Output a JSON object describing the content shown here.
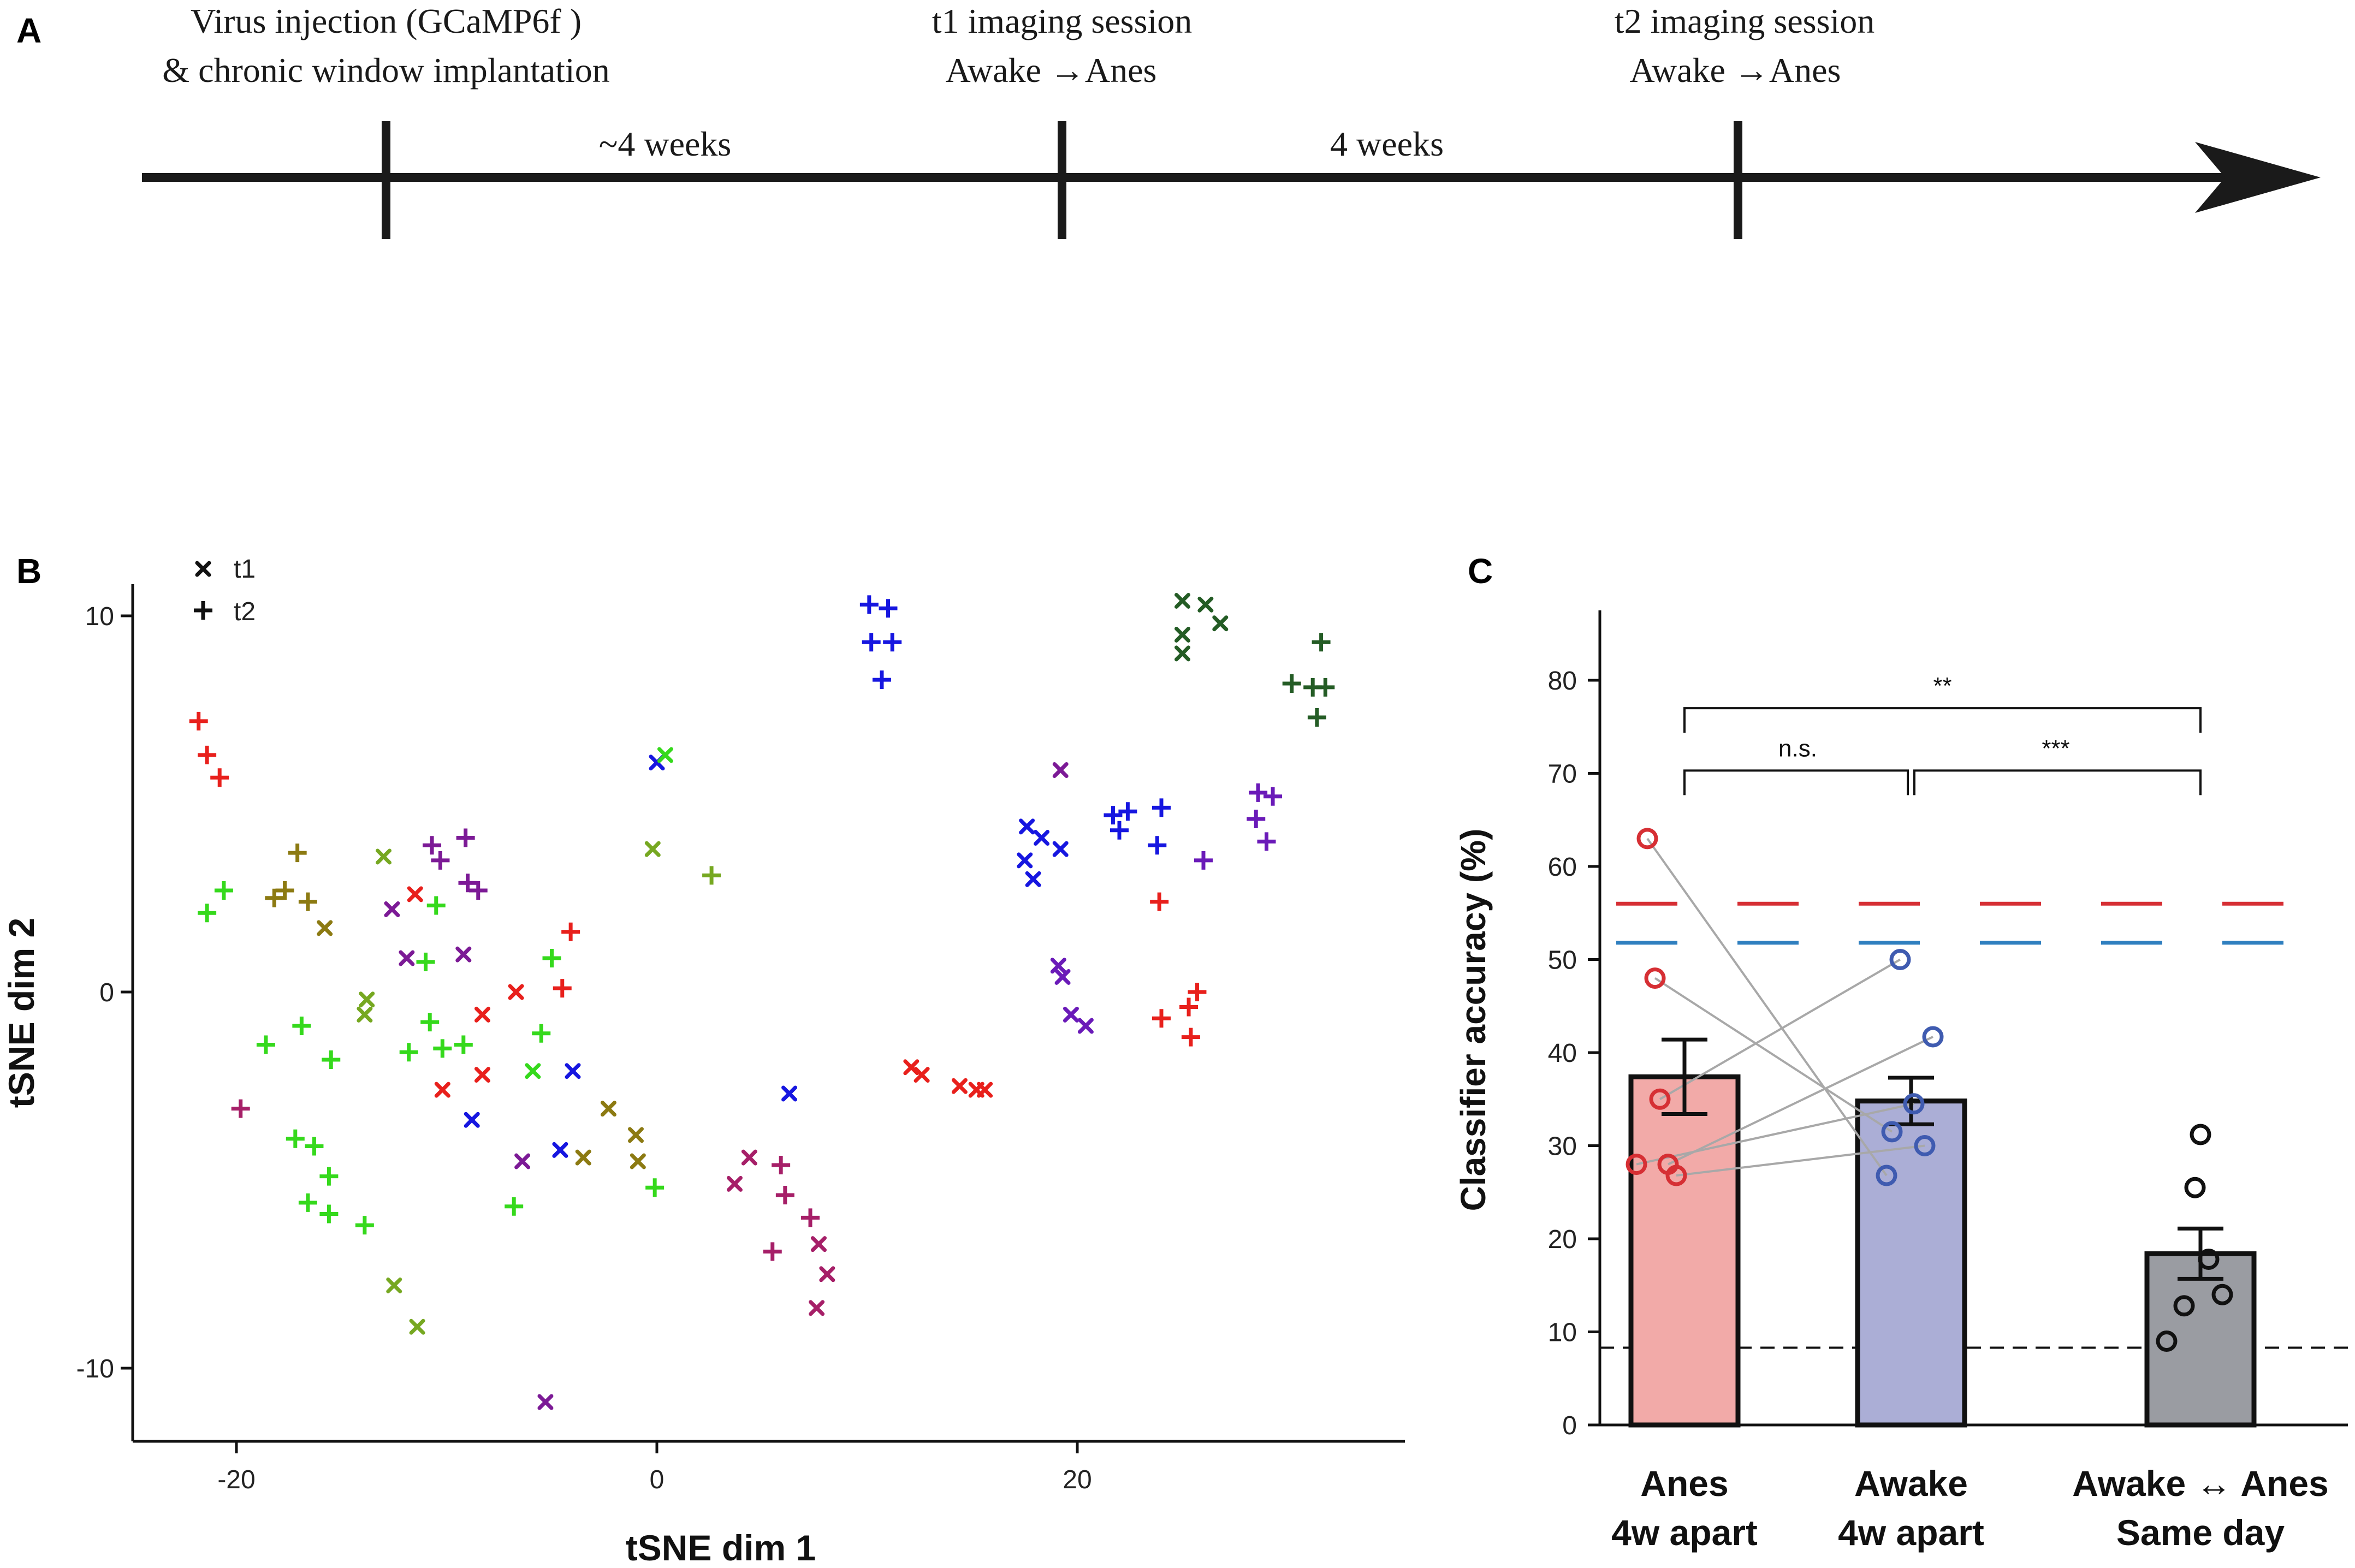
{
  "panels": {
    "a": "A",
    "b": "B",
    "c": "C"
  },
  "timeline": {
    "events": [
      {
        "line1": "Virus injection (GCaMP6f )",
        "line2": "& chronic window implantation"
      },
      {
        "line1": "t1 imaging session",
        "line2": "Awake →Anes"
      },
      {
        "line1": "t2 imaging session",
        "line2": "Awake →Anes"
      }
    ],
    "intervals": [
      "~4 weeks",
      "4 weeks"
    ]
  },
  "chart_data": [
    {
      "type": "scatter",
      "panel": "B",
      "xlabel": "tSNE dim 1",
      "ylabel": "tSNE dim 2",
      "xlim": [
        -25,
        34
      ],
      "ylim": [
        -12,
        11
      ],
      "xticks": [
        "-20",
        "0",
        "20"
      ],
      "xtick_values": [
        -20,
        0,
        20
      ],
      "yticks": [
        "10",
        "0",
        "-10"
      ],
      "ytick_values": [
        10,
        0,
        -10
      ],
      "legend": [
        {
          "marker": "x",
          "label": "t1"
        },
        {
          "marker": "+",
          "label": "t2"
        }
      ],
      "colors": {
        "red": "#e8201c",
        "lime": "#35d91c",
        "olive": "#76a821",
        "mustard": "#8c7a12",
        "magenta": "#a61f68",
        "purple": "#7c1a96",
        "blue": "#1616e0",
        "violet": "#6a1ab8",
        "darkgreen": "#245c25"
      },
      "points": [
        {
          "x": -21.8,
          "y": 7.2,
          "m": "+",
          "c": "red"
        },
        {
          "x": -21.4,
          "y": 6.3,
          "m": "+",
          "c": "red"
        },
        {
          "x": -20.8,
          "y": 5.7,
          "m": "+",
          "c": "red"
        },
        {
          "x": -21.4,
          "y": 2.1,
          "m": "+",
          "c": "lime"
        },
        {
          "x": -20.6,
          "y": 2.7,
          "m": "+",
          "c": "lime"
        },
        {
          "x": -18.2,
          "y": 2.5,
          "m": "+",
          "c": "mustard"
        },
        {
          "x": -17.7,
          "y": 2.7,
          "m": "+",
          "c": "mustard"
        },
        {
          "x": -17.1,
          "y": 3.7,
          "m": "+",
          "c": "mustard"
        },
        {
          "x": -16.6,
          "y": 2.4,
          "m": "+",
          "c": "mustard"
        },
        {
          "x": -15.8,
          "y": 1.7,
          "m": "x",
          "c": "mustard"
        },
        {
          "x": -13.0,
          "y": 3.6,
          "m": "x",
          "c": "olive"
        },
        {
          "x": -12.6,
          "y": 2.2,
          "m": "x",
          "c": "purple"
        },
        {
          "x": -11.5,
          "y": 2.6,
          "m": "x",
          "c": "red"
        },
        {
          "x": -10.7,
          "y": 3.9,
          "m": "+",
          "c": "purple"
        },
        {
          "x": -10.3,
          "y": 3.5,
          "m": "+",
          "c": "purple"
        },
        {
          "x": -10.5,
          "y": 2.3,
          "m": "+",
          "c": "lime"
        },
        {
          "x": -9.1,
          "y": 4.1,
          "m": "+",
          "c": "purple"
        },
        {
          "x": -9.0,
          "y": 2.9,
          "m": "+",
          "c": "purple"
        },
        {
          "x": -8.5,
          "y": 2.7,
          "m": "+",
          "c": "purple"
        },
        {
          "x": -11.9,
          "y": 0.9,
          "m": "x",
          "c": "purple"
        },
        {
          "x": -11.0,
          "y": 0.8,
          "m": "+",
          "c": "lime"
        },
        {
          "x": -9.2,
          "y": 1.0,
          "m": "x",
          "c": "purple"
        },
        {
          "x": -13.8,
          "y": -0.2,
          "m": "x",
          "c": "olive"
        },
        {
          "x": -13.9,
          "y": -0.6,
          "m": "x",
          "c": "olive"
        },
        {
          "x": -10.8,
          "y": -0.8,
          "m": "+",
          "c": "lime"
        },
        {
          "x": -8.3,
          "y": -0.6,
          "m": "x",
          "c": "red"
        },
        {
          "x": -6.7,
          "y": 0.0,
          "m": "x",
          "c": "red"
        },
        {
          "x": -4.5,
          "y": 0.1,
          "m": "+",
          "c": "red"
        },
        {
          "x": -4.1,
          "y": 1.6,
          "m": "+",
          "c": "red"
        },
        {
          "x": -5.0,
          "y": 0.9,
          "m": "+",
          "c": "lime"
        },
        {
          "x": -18.6,
          "y": -1.4,
          "m": "+",
          "c": "lime"
        },
        {
          "x": -16.9,
          "y": -0.9,
          "m": "+",
          "c": "lime"
        },
        {
          "x": -15.5,
          "y": -1.8,
          "m": "+",
          "c": "lime"
        },
        {
          "x": -11.8,
          "y": -1.6,
          "m": "+",
          "c": "lime"
        },
        {
          "x": -10.2,
          "y": -1.5,
          "m": "+",
          "c": "lime"
        },
        {
          "x": -9.2,
          "y": -1.4,
          "m": "+",
          "c": "lime"
        },
        {
          "x": -10.2,
          "y": -2.6,
          "m": "x",
          "c": "red"
        },
        {
          "x": -8.3,
          "y": -2.2,
          "m": "x",
          "c": "red"
        },
        {
          "x": -5.5,
          "y": -1.1,
          "m": "+",
          "c": "lime"
        },
        {
          "x": -5.9,
          "y": -2.1,
          "m": "x",
          "c": "lime"
        },
        {
          "x": -4.0,
          "y": -2.1,
          "m": "x",
          "c": "blue"
        },
        {
          "x": -8.8,
          "y": -3.4,
          "m": "x",
          "c": "blue"
        },
        {
          "x": -19.8,
          "y": -3.1,
          "m": "+",
          "c": "magenta"
        },
        {
          "x": -17.2,
          "y": -3.9,
          "m": "+",
          "c": "lime"
        },
        {
          "x": -16.3,
          "y": -4.1,
          "m": "+",
          "c": "lime"
        },
        {
          "x": -15.6,
          "y": -4.9,
          "m": "+",
          "c": "lime"
        },
        {
          "x": -16.6,
          "y": -5.6,
          "m": "+",
          "c": "lime"
        },
        {
          "x": -15.6,
          "y": -5.9,
          "m": "+",
          "c": "lime"
        },
        {
          "x": -13.9,
          "y": -6.2,
          "m": "+",
          "c": "lime"
        },
        {
          "x": -12.5,
          "y": -7.8,
          "m": "x",
          "c": "olive"
        },
        {
          "x": -11.4,
          "y": -8.9,
          "m": "x",
          "c": "olive"
        },
        {
          "x": -6.8,
          "y": -5.7,
          "m": "+",
          "c": "lime"
        },
        {
          "x": -6.4,
          "y": -4.5,
          "m": "x",
          "c": "purple"
        },
        {
          "x": -4.6,
          "y": -4.2,
          "m": "x",
          "c": "blue"
        },
        {
          "x": -3.5,
          "y": -4.4,
          "m": "x",
          "c": "mustard"
        },
        {
          "x": -2.3,
          "y": -3.1,
          "m": "x",
          "c": "mustard"
        },
        {
          "x": -1.0,
          "y": -3.8,
          "m": "x",
          "c": "mustard"
        },
        {
          "x": -0.9,
          "y": -4.5,
          "m": "x",
          "c": "mustard"
        },
        {
          "x": -0.1,
          "y": -5.2,
          "m": "+",
          "c": "lime"
        },
        {
          "x": 0.0,
          "y": 6.1,
          "m": "x",
          "c": "blue"
        },
        {
          "x": 0.4,
          "y": 6.3,
          "m": "x",
          "c": "lime"
        },
        {
          "x": -0.2,
          "y": 3.8,
          "m": "x",
          "c": "olive"
        },
        {
          "x": 2.6,
          "y": 3.1,
          "m": "+",
          "c": "olive"
        },
        {
          "x": -5.3,
          "y": -10.9,
          "m": "x",
          "c": "purple"
        },
        {
          "x": 4.4,
          "y": -4.4,
          "m": "x",
          "c": "magenta"
        },
        {
          "x": 3.7,
          "y": -5.1,
          "m": "x",
          "c": "magenta"
        },
        {
          "x": 5.9,
          "y": -4.6,
          "m": "+",
          "c": "magenta"
        },
        {
          "x": 6.3,
          "y": -2.7,
          "m": "x",
          "c": "blue"
        },
        {
          "x": 6.1,
          "y": -5.4,
          "m": "+",
          "c": "magenta"
        },
        {
          "x": 7.3,
          "y": -6.0,
          "m": "+",
          "c": "magenta"
        },
        {
          "x": 7.7,
          "y": -6.7,
          "m": "x",
          "c": "magenta"
        },
        {
          "x": 5.5,
          "y": -6.9,
          "m": "+",
          "c": "magenta"
        },
        {
          "x": 8.1,
          "y": -7.5,
          "m": "x",
          "c": "magenta"
        },
        {
          "x": 7.6,
          "y": -8.4,
          "m": "x",
          "c": "magenta"
        },
        {
          "x": 12.1,
          "y": -2.0,
          "m": "x",
          "c": "red"
        },
        {
          "x": 12.6,
          "y": -2.2,
          "m": "x",
          "c": "red"
        },
        {
          "x": 14.4,
          "y": -2.5,
          "m": "x",
          "c": "red"
        },
        {
          "x": 15.2,
          "y": -2.6,
          "m": "x",
          "c": "red"
        },
        {
          "x": 15.6,
          "y": -2.6,
          "m": "x",
          "c": "red"
        },
        {
          "x": 10.1,
          "y": 10.3,
          "m": "+",
          "c": "blue"
        },
        {
          "x": 11.0,
          "y": 10.2,
          "m": "+",
          "c": "blue"
        },
        {
          "x": 10.2,
          "y": 9.3,
          "m": "+",
          "c": "blue"
        },
        {
          "x": 11.2,
          "y": 9.3,
          "m": "+",
          "c": "blue"
        },
        {
          "x": 10.7,
          "y": 8.3,
          "m": "+",
          "c": "blue"
        },
        {
          "x": 19.2,
          "y": 5.9,
          "m": "x",
          "c": "purple"
        },
        {
          "x": 17.6,
          "y": 4.4,
          "m": "x",
          "c": "blue"
        },
        {
          "x": 18.3,
          "y": 4.1,
          "m": "x",
          "c": "blue"
        },
        {
          "x": 19.2,
          "y": 3.8,
          "m": "x",
          "c": "blue"
        },
        {
          "x": 17.5,
          "y": 3.5,
          "m": "x",
          "c": "blue"
        },
        {
          "x": 17.9,
          "y": 3.0,
          "m": "x",
          "c": "blue"
        },
        {
          "x": 21.7,
          "y": 4.7,
          "m": "+",
          "c": "blue"
        },
        {
          "x": 22.4,
          "y": 4.8,
          "m": "+",
          "c": "blue"
        },
        {
          "x": 22.0,
          "y": 4.3,
          "m": "+",
          "c": "blue"
        },
        {
          "x": 24.0,
          "y": 4.9,
          "m": "+",
          "c": "blue"
        },
        {
          "x": 23.8,
          "y": 3.9,
          "m": "+",
          "c": "blue"
        },
        {
          "x": 19.1,
          "y": 0.7,
          "m": "x",
          "c": "violet"
        },
        {
          "x": 19.3,
          "y": 0.4,
          "m": "x",
          "c": "violet"
        },
        {
          "x": 19.7,
          "y": -0.6,
          "m": "x",
          "c": "violet"
        },
        {
          "x": 20.4,
          "y": -0.9,
          "m": "x",
          "c": "violet"
        },
        {
          "x": 23.9,
          "y": 2.4,
          "m": "+",
          "c": "red"
        },
        {
          "x": 25.7,
          "y": 0.0,
          "m": "+",
          "c": "red"
        },
        {
          "x": 25.3,
          "y": -0.4,
          "m": "+",
          "c": "red"
        },
        {
          "x": 24.0,
          "y": -0.7,
          "m": "+",
          "c": "red"
        },
        {
          "x": 25.4,
          "y": -1.2,
          "m": "+",
          "c": "red"
        },
        {
          "x": 26.0,
          "y": 3.5,
          "m": "+",
          "c": "violet"
        },
        {
          "x": 28.6,
          "y": 5.3,
          "m": "+",
          "c": "violet"
        },
        {
          "x": 29.3,
          "y": 5.2,
          "m": "+",
          "c": "violet"
        },
        {
          "x": 28.5,
          "y": 4.6,
          "m": "+",
          "c": "violet"
        },
        {
          "x": 29.0,
          "y": 4.0,
          "m": "+",
          "c": "violet"
        },
        {
          "x": 25.0,
          "y": 10.4,
          "m": "x",
          "c": "darkgreen"
        },
        {
          "x": 26.1,
          "y": 10.3,
          "m": "x",
          "c": "darkgreen"
        },
        {
          "x": 26.8,
          "y": 9.8,
          "m": "x",
          "c": "darkgreen"
        },
        {
          "x": 25.0,
          "y": 9.5,
          "m": "x",
          "c": "darkgreen"
        },
        {
          "x": 25.0,
          "y": 9.0,
          "m": "x",
          "c": "darkgreen"
        },
        {
          "x": 30.2,
          "y": 8.2,
          "m": "+",
          "c": "darkgreen"
        },
        {
          "x": 31.6,
          "y": 9.3,
          "m": "+",
          "c": "darkgreen"
        },
        {
          "x": 31.2,
          "y": 8.1,
          "m": "+",
          "c": "darkgreen"
        },
        {
          "x": 31.8,
          "y": 8.1,
          "m": "+",
          "c": "darkgreen"
        },
        {
          "x": 31.4,
          "y": 7.3,
          "m": "+",
          "c": "darkgreen"
        }
      ]
    },
    {
      "type": "bar",
      "panel": "C",
      "ylabel": "Classifier accuracy (%)",
      "ylim": [
        0,
        85
      ],
      "yticks": [
        "0",
        "10",
        "20",
        "30",
        "40",
        "50",
        "60",
        "70",
        "80"
      ],
      "ytick_values": [
        0,
        10,
        20,
        30,
        40,
        50,
        60,
        70,
        80
      ],
      "categories": [
        {
          "line1": "Anes",
          "line2": "4w apart"
        },
        {
          "line1": "Awake",
          "line2": "4w apart"
        },
        {
          "line1": "Awake ↔ Anes",
          "line2": "Same day"
        }
      ],
      "bar_positions": [
        0,
        1,
        2.5
      ],
      "values": [
        37.4,
        34.8,
        18.4
      ],
      "errors": [
        4.0,
        2.5,
        2.7
      ],
      "bar_colors": [
        "#f2aaa8",
        "#abaed6",
        "#9a9ca2"
      ],
      "point_colors": [
        "#d62f34",
        "#3f5bb0",
        "#111111"
      ],
      "points": [
        [
          63.0,
          48.0,
          35.0,
          28.0,
          28.0,
          26.8
        ],
        [
          50.0,
          41.7,
          34.5,
          31.5,
          30.0,
          26.8
        ],
        [
          31.2,
          25.5,
          17.8,
          14.0,
          12.8,
          9.0
        ]
      ],
      "pairs": [
        [
          0,
          5
        ],
        [
          1,
          3
        ],
        [
          2,
          0
        ],
        [
          3,
          1
        ],
        [
          4,
          2
        ],
        [
          5,
          4
        ]
      ],
      "reference_lines": [
        {
          "value": 56.0,
          "color": "#d62f34",
          "style": "dashed"
        },
        {
          "value": 51.8,
          "color": "#2f7fbf",
          "style": "dashed"
        },
        {
          "value": 8.3,
          "color": "#111111",
          "style": "dashed"
        }
      ],
      "significance": [
        {
          "from": 0,
          "to": 1,
          "label": "n.s.",
          "level": 70.3
        },
        {
          "from": 1,
          "to": 2,
          "label": "***",
          "level": 70.3
        },
        {
          "from": 0,
          "to": 2,
          "label": "**",
          "level": 77.0
        }
      ]
    }
  ]
}
